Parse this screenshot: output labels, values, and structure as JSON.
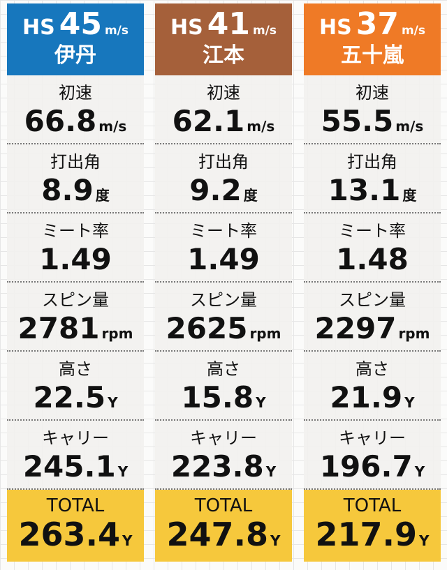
{
  "columns": [
    {
      "hs_label": "HS",
      "hs": "45",
      "hs_unit": "m/s",
      "name": "伊丹",
      "color": "#1777bd",
      "rows": [
        {
          "label": "初速",
          "value": "66.8",
          "unit": "m/s"
        },
        {
          "label": "打出角",
          "value": "8.9",
          "unit": "度"
        },
        {
          "label": "ミート率",
          "value": "1.49"
        },
        {
          "label": "スピン量",
          "value": "2781",
          "unit": "rpm"
        },
        {
          "label": "高さ",
          "value": "22.5",
          "unit": "Y"
        },
        {
          "label": "キャリー",
          "value": "245.1",
          "unit": "Y"
        }
      ],
      "total": {
        "label": "TOTAL",
        "value": "263.4",
        "unit": "Y"
      }
    },
    {
      "hs_label": "HS",
      "hs": "41",
      "hs_unit": "m/s",
      "name": "江本",
      "color": "#a5603a",
      "rows": [
        {
          "label": "初速",
          "value": "62.1",
          "unit": "m/s"
        },
        {
          "label": "打出角",
          "value": "9.2",
          "unit": "度"
        },
        {
          "label": "ミート率",
          "value": "1.49"
        },
        {
          "label": "スピン量",
          "value": "2625",
          "unit": "rpm"
        },
        {
          "label": "高さ",
          "value": "15.8",
          "unit": "Y"
        },
        {
          "label": "キャリー",
          "value": "223.8",
          "unit": "Y"
        }
      ],
      "total": {
        "label": "TOTAL",
        "value": "247.8",
        "unit": "Y"
      }
    },
    {
      "hs_label": "HS",
      "hs": "37",
      "hs_unit": "m/s",
      "name": "五十嵐",
      "color": "#ef7a26",
      "rows": [
        {
          "label": "初速",
          "value": "55.5",
          "unit": "m/s"
        },
        {
          "label": "打出角",
          "value": "13.1",
          "unit": "度"
        },
        {
          "label": "ミート率",
          "value": "1.48"
        },
        {
          "label": "スピン量",
          "value": "2297",
          "unit": "rpm"
        },
        {
          "label": "高さ",
          "value": "21.9",
          "unit": "Y"
        },
        {
          "label": "キャリー",
          "value": "196.7",
          "unit": "Y"
        }
      ],
      "total": {
        "label": "TOTAL",
        "value": "217.9",
        "unit": "Y"
      }
    }
  ]
}
